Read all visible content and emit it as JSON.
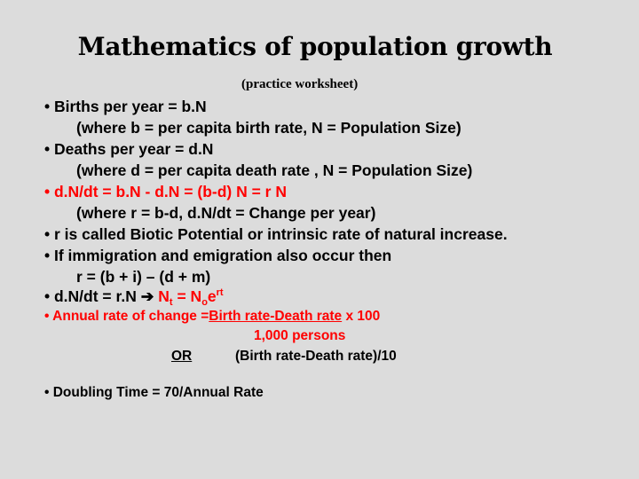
{
  "title": "Mathematics of population growth",
  "subtitle": "(practice worksheet)",
  "lines": {
    "births": "• Births per year = b.N",
    "births_note": "(where b = per capita birth rate, N = Population Size)",
    "deaths": "• Deaths per year = d.N",
    "deaths_note": "(where d = per capita death rate , N = Population Size)",
    "dndt": "• d.N/dt = b.N - d.N = (b-d) N = r N",
    "dndt_note": "(where r = b-d, d.N/dt = Change per year)",
    "biotic": "• r is called Biotic Potential or intrinsic rate of natural increase.",
    "immigration": "• If immigration and emigration also occur then",
    "r_formula": "r = (b + i) – (d + m)"
  },
  "exp_line": {
    "prefix": "• d.N/dt = r.N",
    "arrow": "➔",
    "nt": "N",
    "nt_sub": "t",
    "eq": " = N",
    "no_sub": "o",
    "e": "e",
    "e_sup": "rt"
  },
  "annual": {
    "label": "• Annual rate of change  =",
    "numerator": "Birth rate-Death rate",
    "multiplier": "  x 100",
    "denominator": "1,000 persons",
    "or": "OR",
    "alt": "(Birth rate-Death rate)/10"
  },
  "doubling": "• Doubling Time = 70/Annual Rate",
  "colors": {
    "background": "#dcdcdc",
    "accent": "#ff0000",
    "text": "#000000"
  }
}
